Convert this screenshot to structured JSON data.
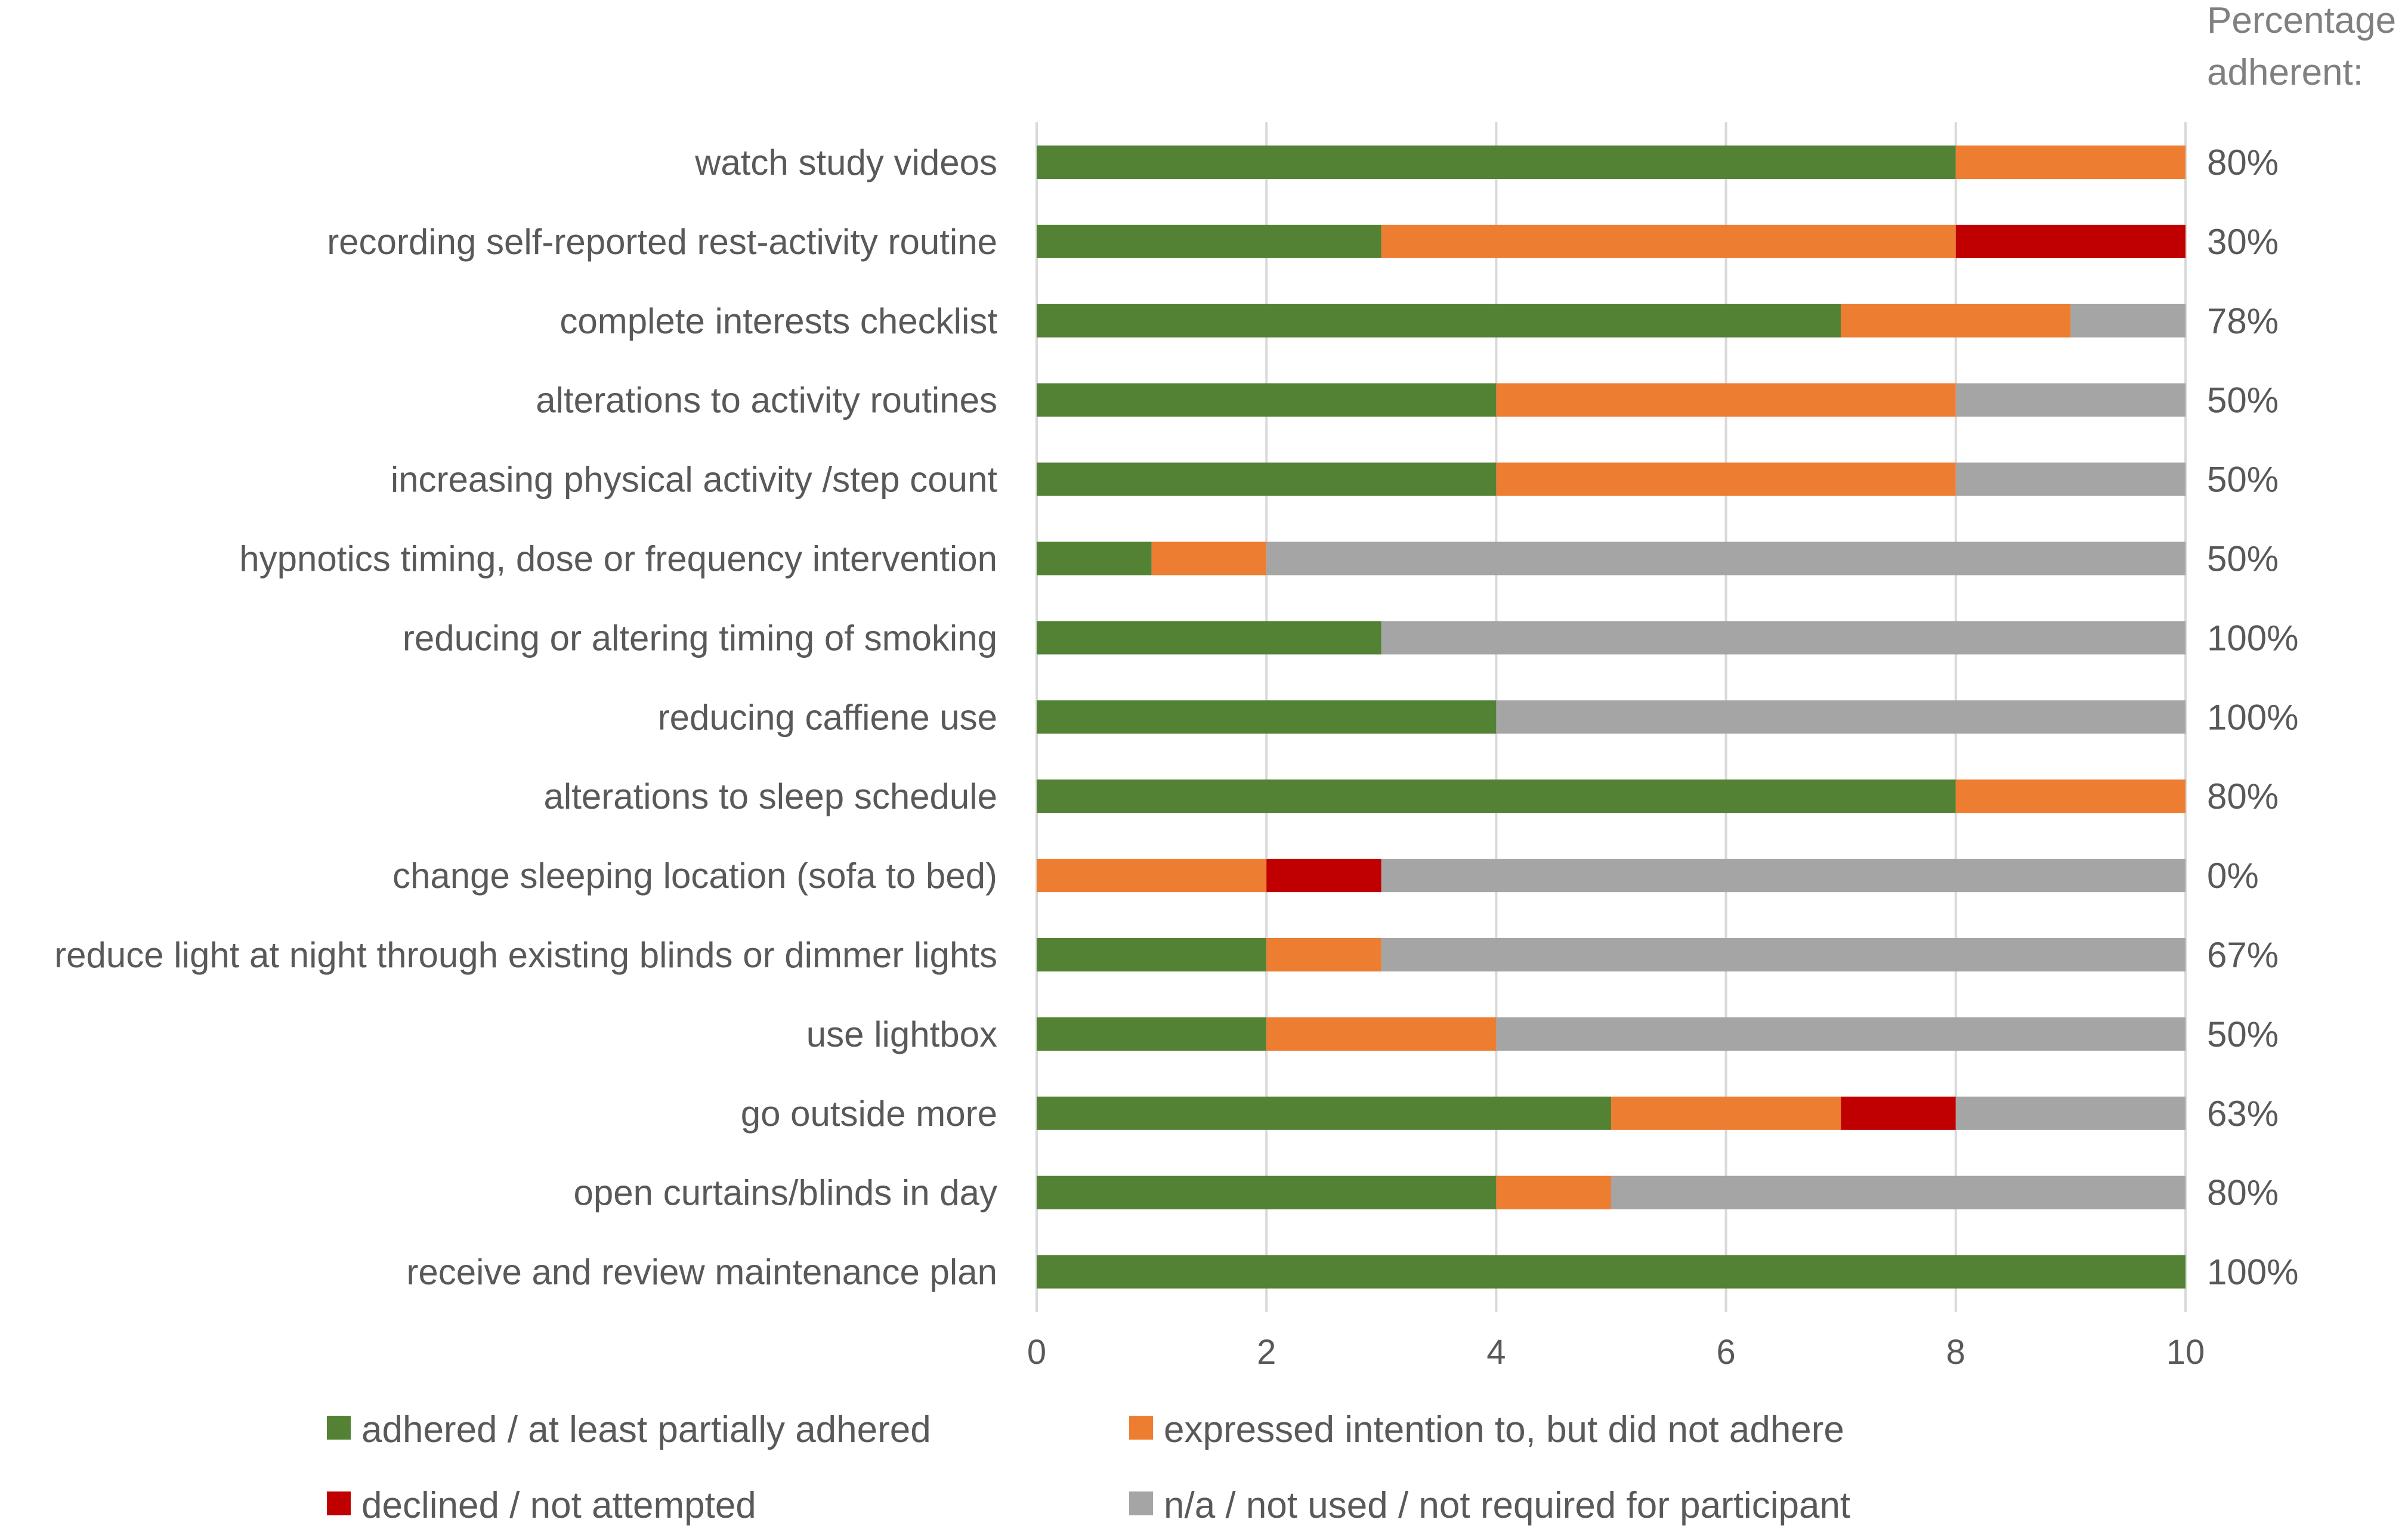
{
  "chart_data": {
    "type": "bar",
    "orientation": "horizontal",
    "stacked": true,
    "categories": [
      "watch study videos",
      "recording self-reported rest-activity routine",
      "complete interests checklist",
      "alterations to activity routines",
      "increasing physical activity /step count",
      "hypnotics timing, dose or frequency intervention",
      "reducing or altering timing of smoking",
      "reducing caffiene use",
      "alterations to sleep schedule",
      "change sleeping location (sofa to bed)",
      "reduce light at night through existing blinds or dimmer lights",
      "use lightbox",
      "go outside more",
      "open curtains/blinds in day",
      "receive and review maintenance plan"
    ],
    "series": [
      {
        "name": "adhered / at least partially adhered",
        "color": "#548235",
        "values": [
          8,
          3,
          7,
          4,
          4,
          1,
          3,
          4,
          8,
          0,
          2,
          2,
          5,
          4,
          10
        ]
      },
      {
        "name": "expressed intention to, but did not adhere",
        "color": "#ED7D31",
        "values": [
          2,
          5,
          2,
          4,
          4,
          1,
          0,
          0,
          2,
          2,
          1,
          2,
          2,
          1,
          0
        ]
      },
      {
        "name": "declined / not attempted",
        "color": "#C00000",
        "values": [
          0,
          2,
          0,
          0,
          0,
          0,
          0,
          0,
          0,
          1,
          0,
          0,
          1,
          0,
          0
        ]
      },
      {
        "name": "n/a / not used / not required for participant",
        "color": "#A5A5A5",
        "values": [
          0,
          0,
          1,
          2,
          2,
          8,
          7,
          6,
          0,
          7,
          7,
          6,
          2,
          5,
          0
        ]
      }
    ],
    "percentage_title": [
      "Percentage",
      "adherent:"
    ],
    "percentages": [
      "80%",
      "30%",
      "78%",
      "50%",
      "50%",
      "50%",
      "100%",
      "100%",
      "80%",
      "0%",
      "67%",
      "50%",
      "63%",
      "80%",
      "100%"
    ],
    "xlim": [
      0,
      10
    ],
    "xticks": [
      "0",
      "2",
      "4",
      "6",
      "8",
      "10"
    ],
    "grid": true,
    "legend_position": "bottom"
  }
}
